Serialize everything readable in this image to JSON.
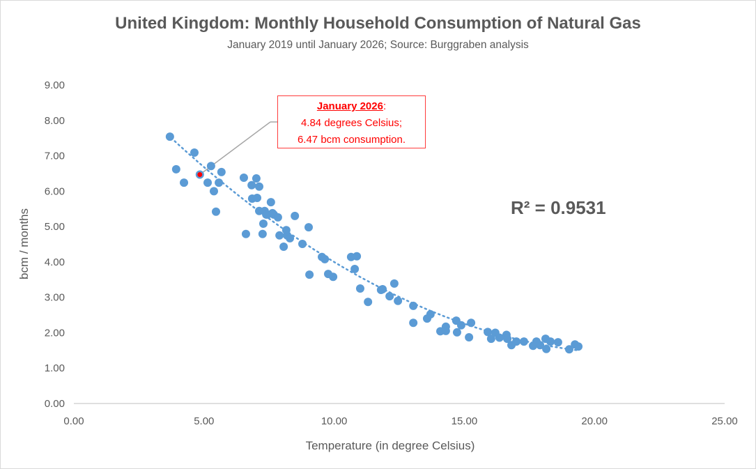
{
  "chart_data": {
    "type": "scatter",
    "title": "United Kingdom: Monthly Household Consumption of Natural Gas",
    "subtitle": "January 2019 until January 2026; Source: Burggraben analysis",
    "xlabel": "Temperature (in degree Celsius)",
    "ylabel": "bcm / months",
    "xlim": [
      0,
      25
    ],
    "ylim": [
      0,
      9
    ],
    "xticks": [
      "0.00",
      "5.00",
      "10.00",
      "15.00",
      "20.00",
      "25.00"
    ],
    "yticks": [
      "0.00",
      "1.00",
      "2.00",
      "3.00",
      "4.00",
      "5.00",
      "6.00",
      "7.00",
      "8.00",
      "9.00"
    ],
    "grid": false,
    "series_color": "#5b9bd5",
    "highlight_color": "#ff0000",
    "points": [
      [
        3.69,
        7.54
      ],
      [
        3.93,
        6.62
      ],
      [
        4.23,
        6.24
      ],
      [
        4.63,
        7.09
      ],
      [
        5.14,
        6.24
      ],
      [
        5.27,
        6.71
      ],
      [
        5.38,
        6.0
      ],
      [
        5.46,
        5.42
      ],
      [
        5.57,
        6.24
      ],
      [
        5.67,
        6.54
      ],
      [
        6.53,
        6.38
      ],
      [
        6.61,
        4.79
      ],
      [
        6.83,
        6.17
      ],
      [
        6.85,
        5.79
      ],
      [
        7.01,
        6.36
      ],
      [
        7.04,
        5.81
      ],
      [
        7.12,
        6.13
      ],
      [
        7.12,
        5.44
      ],
      [
        7.25,
        4.79
      ],
      [
        7.28,
        5.08
      ],
      [
        7.33,
        5.44
      ],
      [
        7.39,
        5.34
      ],
      [
        7.44,
        5.34
      ],
      [
        7.57,
        5.69
      ],
      [
        7.63,
        5.38
      ],
      [
        7.68,
        5.34
      ],
      [
        7.84,
        5.26
      ],
      [
        7.9,
        4.75
      ],
      [
        8.06,
        4.43
      ],
      [
        8.16,
        4.9
      ],
      [
        8.19,
        4.75
      ],
      [
        8.3,
        4.67
      ],
      [
        8.49,
        5.3
      ],
      [
        8.78,
        4.51
      ],
      [
        9.02,
        4.98
      ],
      [
        9.05,
        3.64
      ],
      [
        9.53,
        4.14
      ],
      [
        9.64,
        4.08
      ],
      [
        9.77,
        3.66
      ],
      [
        9.96,
        3.58
      ],
      [
        10.65,
        4.14
      ],
      [
        10.79,
        3.8
      ],
      [
        10.87,
        4.16
      ],
      [
        11.0,
        3.25
      ],
      [
        11.3,
        2.87
      ],
      [
        11.8,
        3.21
      ],
      [
        11.86,
        3.23
      ],
      [
        12.13,
        3.03
      ],
      [
        12.31,
        3.39
      ],
      [
        12.45,
        2.9
      ],
      [
        13.04,
        2.76
      ],
      [
        13.04,
        2.28
      ],
      [
        13.57,
        2.4
      ],
      [
        13.7,
        2.52
      ],
      [
        14.08,
        2.04
      ],
      [
        14.29,
        2.17
      ],
      [
        14.29,
        2.05
      ],
      [
        14.69,
        2.34
      ],
      [
        14.72,
        2.01
      ],
      [
        14.88,
        2.21
      ],
      [
        15.18,
        1.87
      ],
      [
        15.26,
        2.28
      ],
      [
        15.9,
        2.02
      ],
      [
        16.03,
        1.83
      ],
      [
        16.19,
        2.0
      ],
      [
        16.35,
        1.86
      ],
      [
        16.62,
        1.94
      ],
      [
        16.65,
        1.83
      ],
      [
        16.81,
        1.65
      ],
      [
        17.0,
        1.75
      ],
      [
        17.29,
        1.75
      ],
      [
        17.64,
        1.63
      ],
      [
        17.77,
        1.75
      ],
      [
        17.91,
        1.65
      ],
      [
        18.12,
        1.83
      ],
      [
        18.15,
        1.54
      ],
      [
        18.31,
        1.75
      ],
      [
        18.6,
        1.73
      ],
      [
        19.03,
        1.53
      ],
      [
        19.25,
        1.67
      ],
      [
        19.38,
        1.61
      ]
    ],
    "highlight_point": [
      4.84,
      6.47
    ],
    "trendline": {
      "type": "polynomial",
      "coefficients": [
        10.3,
        -0.8178,
        0.01877
      ],
      "x_range": [
        3.6,
        19.4
      ],
      "r2_label": "R² = 0.9531"
    },
    "annotation": {
      "heading": "January 2026",
      "suffix": ":",
      "line1": "4.84 degrees Celsius;",
      "line2": "6.47 bcm consumption."
    }
  }
}
